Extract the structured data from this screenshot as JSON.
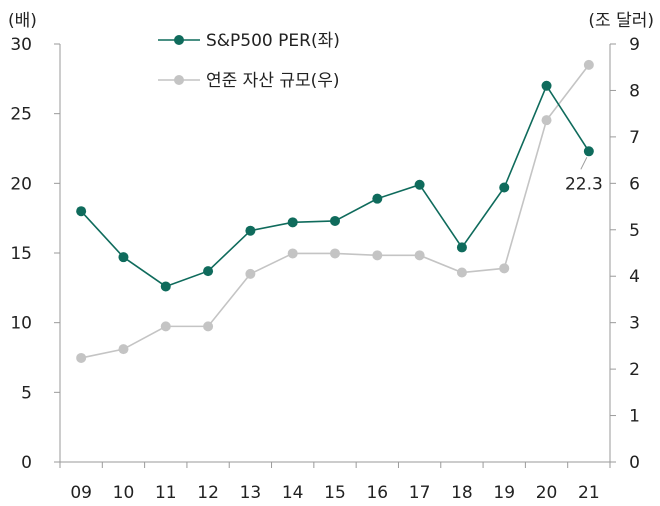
{
  "chart_data": {
    "type": "line",
    "categories": [
      "09",
      "10",
      "11",
      "12",
      "13",
      "14",
      "15",
      "16",
      "17",
      "18",
      "19",
      "20",
      "21"
    ],
    "y_left_unit": "(배)",
    "y_right_unit": "(조 달러)",
    "y_left_ticks": [
      "0",
      "5",
      "10",
      "15",
      "20",
      "25",
      "30"
    ],
    "y_right_ticks": [
      "0",
      "1",
      "2",
      "3",
      "4",
      "5",
      "6",
      "7",
      "8",
      "9"
    ],
    "ylim_left": [
      0,
      30
    ],
    "ylim_right": [
      0,
      9
    ],
    "grid": false,
    "legend_position": "top-center",
    "series": [
      {
        "name": "S&P500 PER(좌)",
        "axis": "left",
        "color": "#0f6b5c",
        "marker": "filled-circle",
        "values": [
          18.0,
          14.7,
          12.6,
          13.7,
          16.6,
          17.2,
          17.3,
          18.9,
          19.9,
          15.4,
          19.7,
          27.0,
          22.3
        ]
      },
      {
        "name": "연준 자산 규모(우)",
        "axis": "right",
        "color": "#c4c4c4",
        "marker": "filled-circle",
        "values": [
          2.24,
          2.43,
          2.92,
          2.92,
          4.05,
          4.49,
          4.49,
          4.45,
          4.45,
          4.08,
          4.17,
          7.36,
          8.55
        ]
      }
    ],
    "annotations": [
      {
        "text": "22.3",
        "series": "S&P500 PER(좌)",
        "category": "21"
      }
    ]
  }
}
